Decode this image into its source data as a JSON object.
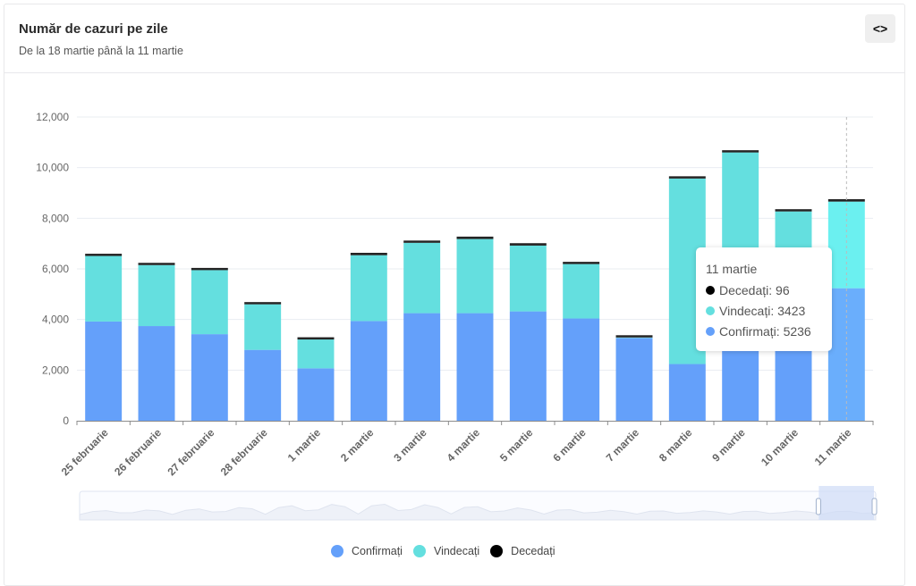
{
  "header": {
    "title": "Număr de cazuri pe zile",
    "subtitle": "De la 18 martie până la 11 martie",
    "embed_icon": "code-brackets-icon",
    "embed_label": "<>"
  },
  "colors": {
    "confirmati": "#64a0fa",
    "vindecati": "#64dfdf",
    "decedati": "#111111",
    "grid": "#e9edf2",
    "axis": "#8c8c8c",
    "highlight_confirmati": "#6aaefc",
    "highlight_vindecati": "#6bf0f0"
  },
  "chart_data": {
    "type": "bar",
    "stacked": true,
    "title": "Număr de cazuri pe zile",
    "subtitle": "De la 18 martie până la 11 martie",
    "xlabel": "",
    "ylabel": "",
    "ylim": [
      0,
      12000
    ],
    "yticks": [
      0,
      2000,
      4000,
      6000,
      8000,
      10000,
      12000
    ],
    "ytick_labels": [
      "0",
      "2,000",
      "4,000",
      "6,000",
      "8,000",
      "10,000",
      "12,000"
    ],
    "grid": true,
    "legend_position": "bottom",
    "categories": [
      "25 februarie",
      "26 februarie",
      "27 februarie",
      "28 februarie",
      "1 martie",
      "2 martie",
      "3 martie",
      "4 martie",
      "5 martie",
      "6 martie",
      "7 martie",
      "8 martie",
      "9 martie",
      "10 martie",
      "11 martie"
    ],
    "series": [
      {
        "name": "Confirmați",
        "values": [
          3920,
          3740,
          3420,
          2800,
          2070,
          3940,
          4250,
          4250,
          4320,
          4040,
          3270,
          2240,
          3000,
          3000,
          5236
        ]
      },
      {
        "name": "Vindecați",
        "values": [
          2590,
          2410,
          2530,
          1800,
          1140,
          2600,
          2780,
          2930,
          2600,
          2150,
          20,
          7330,
          7600,
          5270,
          3423
        ]
      },
      {
        "name": "Decedați",
        "values": [
          85,
          85,
          60,
          60,
          60,
          95,
          80,
          95,
          95,
          60,
          40,
          80,
          85,
          60,
          96
        ]
      }
    ],
    "highlighted_category": "11 martie",
    "tooltip": {
      "title": "11 martie",
      "rows": [
        {
          "label": "Decedați",
          "value": "96"
        },
        {
          "label": "Vindecați",
          "value": "3423"
        },
        {
          "label": "Confirmați",
          "value": "5236"
        }
      ]
    }
  },
  "legend": [
    {
      "label": "Confirmați",
      "color": "#64a0fa"
    },
    {
      "label": "Vindecați",
      "color": "#64dfdf"
    },
    {
      "label": "Decedați",
      "color": "#000000"
    }
  ],
  "zoom_slider": {
    "range_start_fraction": 0.96,
    "range_end_fraction": 1.0
  }
}
